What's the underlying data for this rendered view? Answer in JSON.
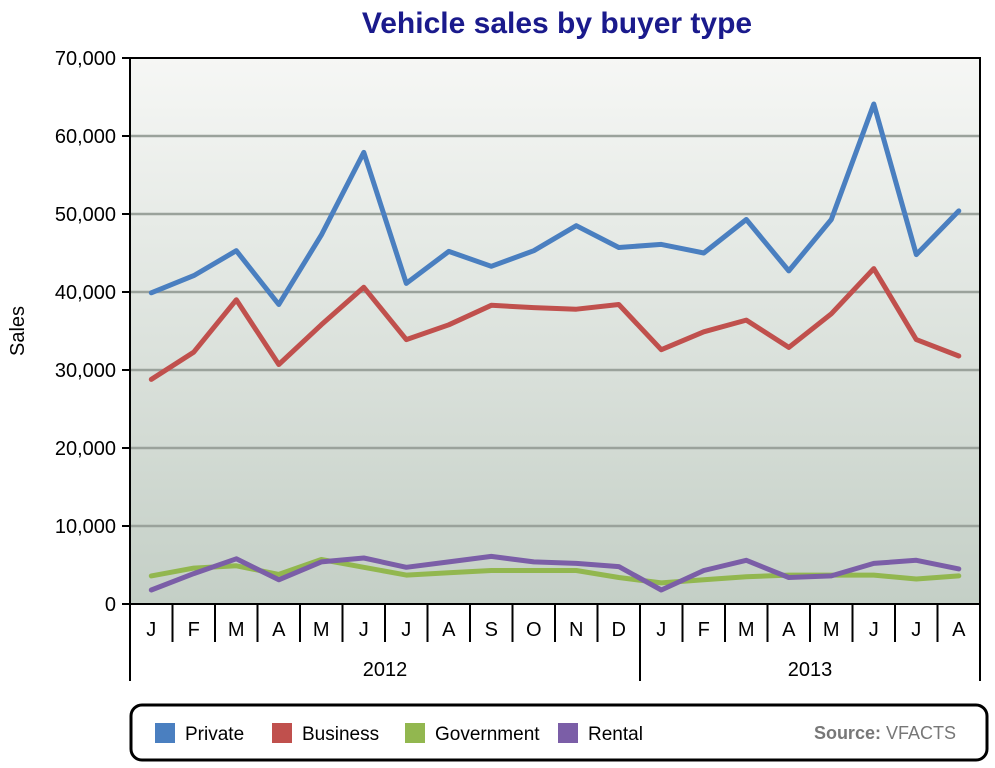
{
  "chart_data": {
    "type": "line",
    "title": "Vehicle sales by buyer type",
    "ylabel": "Sales",
    "ylim": [
      0,
      70000
    ],
    "yticks": [
      "0",
      "10,000",
      "20,000",
      "30,000",
      "40,000",
      "50,000",
      "60,000",
      "70,000"
    ],
    "categories": [
      "J",
      "F",
      "M",
      "A",
      "M",
      "J",
      "J",
      "A",
      "S",
      "O",
      "N",
      "D",
      "J",
      "F",
      "M",
      "A",
      "M",
      "J",
      "J",
      "A"
    ],
    "year_groups": [
      {
        "label": "2012",
        "start": 0,
        "end": 11
      },
      {
        "label": "2013",
        "start": 12,
        "end": 19
      }
    ],
    "series": [
      {
        "name": "Private",
        "color": "#4a7fc0",
        "values": [
          39900,
          42100,
          45300,
          38400,
          47300,
          57900,
          41100,
          45200,
          43300,
          45300,
          48500,
          45700,
          46100,
          45000,
          49300,
          42700,
          49300,
          64100,
          44800,
          50400
        ]
      },
      {
        "name": "Business",
        "color": "#c0504d",
        "values": [
          28800,
          32300,
          39000,
          30700,
          35800,
          40600,
          33900,
          35800,
          38300,
          38000,
          37800,
          38400,
          32600,
          34900,
          36400,
          32900,
          37200,
          43000,
          33900,
          31800
        ]
      },
      {
        "name": "Government",
        "color": "#92b74f",
        "values": [
          3600,
          4600,
          4900,
          3800,
          5700,
          4700,
          3700,
          4000,
          4300,
          4300,
          4300,
          3400,
          2700,
          3100,
          3500,
          3700,
          3700,
          3700,
          3200,
          3600
        ]
      },
      {
        "name": "Rental",
        "color": "#7b5ea7",
        "values": [
          1800,
          3900,
          5800,
          3100,
          5400,
          5900,
          4700,
          5400,
          6100,
          5400,
          5200,
          4800,
          1800,
          4300,
          5600,
          3400,
          3600,
          5200,
          5600,
          4500
        ]
      }
    ],
    "grid": true,
    "legend": {
      "position": "bottom",
      "source_label": "Source:",
      "source_value": "VFACTS"
    }
  }
}
